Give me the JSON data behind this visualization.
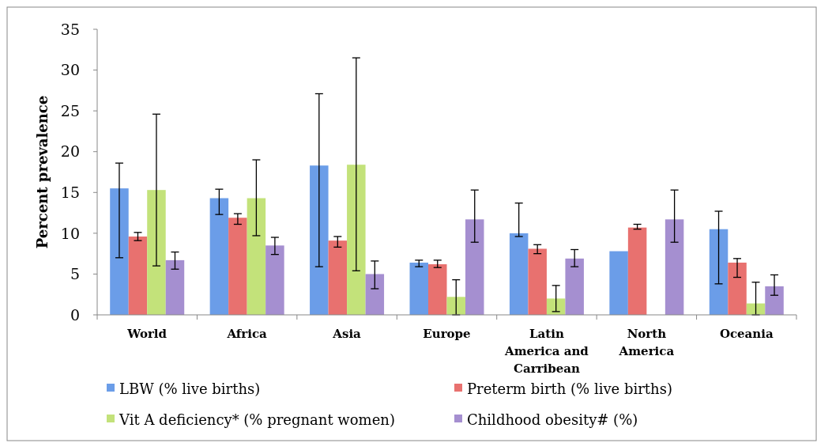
{
  "chart_data": {
    "type": "bar",
    "ylabel": "Percent prevalence",
    "categories": [
      "World",
      "Africa",
      "Asia",
      "Europe",
      "Latin America and Carribean",
      "North America",
      "Oceania"
    ],
    "series": [
      {
        "name": "LBW (% live births)",
        "color": "#6b9de8",
        "values": [
          15.5,
          14.3,
          18.3,
          6.4,
          10.0,
          7.8,
          10.5
        ],
        "errors": [
          [
            7.0,
            18.6
          ],
          [
            12.3,
            15.4
          ],
          [
            5.9,
            27.1
          ],
          [
            5.9,
            6.7
          ],
          [
            9.6,
            13.7
          ],
          null,
          [
            3.8,
            12.7
          ]
        ]
      },
      {
        "name": "Preterm birth (% live births)",
        "color": "#e8716f",
        "values": [
          9.6,
          11.9,
          9.1,
          6.2,
          8.1,
          10.7,
          6.4
        ],
        "errors": [
          [
            9.1,
            10.1
          ],
          [
            11.1,
            12.4
          ],
          [
            8.3,
            9.6
          ],
          [
            5.8,
            6.7
          ],
          [
            7.5,
            8.6
          ],
          [
            10.5,
            11.1
          ],
          [
            4.6,
            6.9
          ]
        ]
      },
      {
        "name": "Vit A deficiency* (% pregnant women)",
        "color": "#c3e27a",
        "values": [
          15.3,
          14.3,
          18.4,
          2.2,
          2.0,
          null,
          1.4
        ],
        "errors": [
          [
            6.0,
            24.6
          ],
          [
            9.7,
            19.0
          ],
          [
            5.4,
            31.5
          ],
          [
            0,
            4.3
          ],
          [
            0.4,
            3.6
          ],
          null,
          [
            0,
            4.0
          ]
        ]
      },
      {
        "name": "Childhood obesity# (%)",
        "color": "#a58fd0",
        "values": [
          6.7,
          8.5,
          5.0,
          11.7,
          6.9,
          11.7,
          3.5
        ],
        "errors": [
          [
            5.6,
            7.7
          ],
          [
            7.4,
            9.5
          ],
          [
            3.2,
            6.6
          ],
          [
            8.9,
            15.3
          ],
          [
            5.9,
            8.0
          ],
          [
            8.9,
            15.3
          ],
          [
            2.4,
            4.9
          ]
        ]
      }
    ],
    "ylim": [
      0,
      35
    ],
    "yticks": [
      0,
      5,
      10,
      15,
      20,
      25,
      30,
      35
    ],
    "grid": false,
    "legend": "bottom"
  }
}
